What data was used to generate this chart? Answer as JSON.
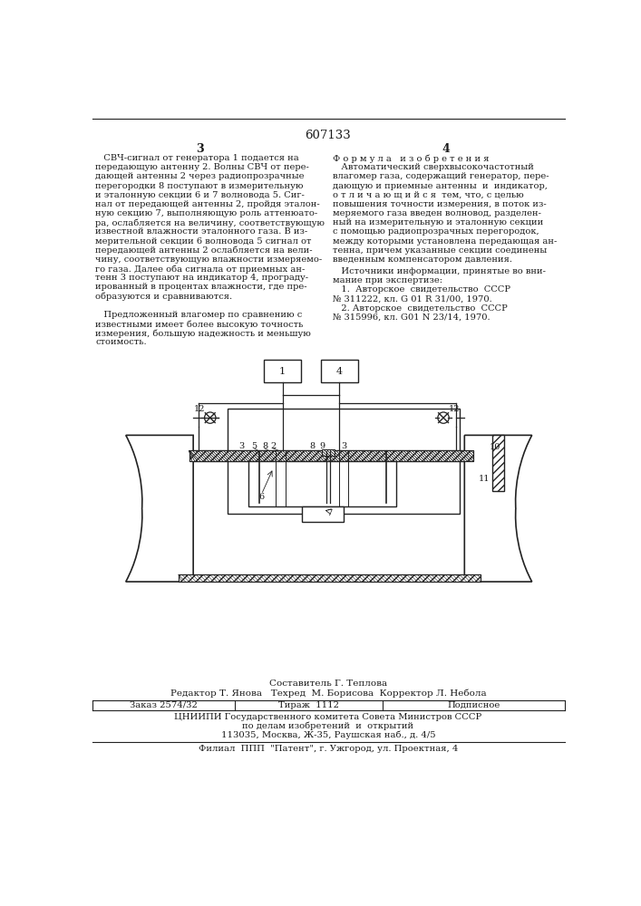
{
  "patent_number": "607133",
  "page_left": "3",
  "page_right": "4",
  "bg_color": "#ffffff",
  "text_color": "#1a1a1a",
  "line_color": "#222222",
  "left_column_text": [
    "   СВЧ-сигнал от генератора 1 подается на",
    "передающую антенну 2. Волны СВЧ от пере-",
    "дающей антенны 2 через радиопрозрачные",
    "перегородки 8 поступают в измерительную",
    "и эталонную секции 6 и 7 волновода 5. Сиг-",
    "нал от передающей антенны 2, пройдя эталон-",
    "ную секцию 7, выполняющую роль аттенюато-",
    "ра, ослабляется на величину, соответствующую",
    "известной влажности эталонного газа. В из-",
    "мерительной секции 6 волновода 5 сигнал от",
    "передающей антенны 2 ослабляется на вели-",
    "чину, соответствующую влажности измеряемо-",
    "го газа. Далее оба сигнала от приемных ан-",
    "тенн 3 поступают на индикатор 4, програду-",
    "ированный в процентах влажности, где пре-",
    "образуются и сравниваются.",
    "",
    "   Предложенный влагомер по сравнению с",
    "известными имеет более высокую точность",
    "измерения, большую надежность и меньшую",
    "стоимость."
  ],
  "right_formula_header": "Ф о р м у л а   и з о б р е т е н и я",
  "right_column_text": [
    "   Автоматический сверхвысокочастотный",
    "влагомер газа, содержащий генератор, пере-",
    "дающую и приемные антенны  и  индикатор,",
    "о т л и ч а ю щ и й с я  тем, что, с целью",
    "повышения точности измерения, в поток из-",
    "меряемого газа введен волновод, разделен-",
    "ный на измерительную и эталонную секции",
    "с помощью радиопрозрачных перегородок,",
    "между которыми установлена передающая ан-",
    "тенна, причем указанные секции соединены",
    "введенным компенсатором давления."
  ],
  "sources_intro": "   Источники информации, принятые во вни-",
  "sources_text": [
    "мание при экспертизе:",
    "   1.  Авторское  свидетельство  СССР",
    "№ 311222, кл. G 01 R 31/00, 1970.",
    "   2. Авторское  свидетельство  СССР",
    "№ 315996, кл. G01 N 23/14, 1970."
  ],
  "footer_composer": "Составитель Г. Теплова",
  "footer_editor": "Редактор Т. Янова   Техред  М. Борисова  Корректор Л. Небола",
  "footer_order": "Заказ 2574/32",
  "footer_tirazh": "Тираж  1112",
  "footer_podp": "Подписное",
  "footer_org1": "ЦНИИПИ Государственного комитета Совета Министров СССР",
  "footer_org2": "по делам изобретений  и  открытий",
  "footer_addr": "113035, Москва, Ж-35, Раушская наб., д. 4/5",
  "footer_filial": "Филиал  ППП  \"Патент\", г. Ужгород, ул. Проектная, 4"
}
